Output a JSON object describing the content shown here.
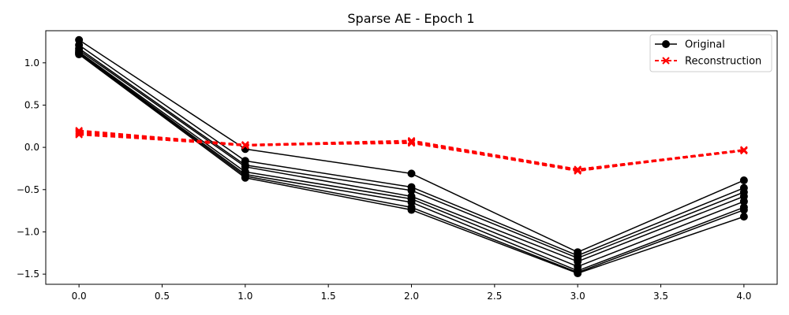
{
  "chart_data": {
    "type": "line",
    "title": "Sparse AE - Epoch 1",
    "xlabel": "",
    "ylabel": "",
    "xlim": [
      -0.2,
      4.2
    ],
    "ylim": [
      -1.62,
      1.38
    ],
    "x": [
      0,
      1,
      2,
      3,
      4
    ],
    "x_ticks": [
      0.0,
      0.5,
      1.0,
      1.5,
      2.0,
      2.5,
      3.0,
      3.5,
      4.0
    ],
    "x_tick_labels": [
      "0.0",
      "0.5",
      "1.0",
      "1.5",
      "2.0",
      "2.5",
      "3.0",
      "3.5",
      "4.0"
    ],
    "y_ticks": [
      1.0,
      0.5,
      0.0,
      -0.5,
      -1.0,
      -1.5
    ],
    "y_tick_labels": [
      "1.0",
      "0.5",
      "0.0",
      "−0.5",
      "−1.0",
      "−1.5"
    ],
    "grid": false,
    "legend": {
      "placement": "top-right",
      "entries": [
        {
          "label": "Original",
          "color": "#000000",
          "style": "solid",
          "marker": "circle"
        },
        {
          "label": "Reconstruction",
          "color": "#ff0000",
          "style": "dashed",
          "marker": "x"
        }
      ]
    },
    "series": [
      {
        "group": "original",
        "values": [
          1.27,
          -0.02,
          -0.31,
          -1.24,
          -0.39
        ]
      },
      {
        "group": "original",
        "values": [
          1.21,
          -0.16,
          -0.47,
          -1.28,
          -0.48
        ]
      },
      {
        "group": "original",
        "values": [
          1.17,
          -0.21,
          -0.51,
          -1.31,
          -0.53
        ]
      },
      {
        "group": "original",
        "values": [
          1.15,
          -0.23,
          -0.58,
          -1.35,
          -0.58
        ]
      },
      {
        "group": "original",
        "values": [
          1.13,
          -0.29,
          -0.61,
          -1.41,
          -0.64
        ]
      },
      {
        "group": "original",
        "values": [
          1.12,
          -0.32,
          -0.65,
          -1.46,
          -0.71
        ]
      },
      {
        "group": "original",
        "values": [
          1.11,
          -0.34,
          -0.71,
          -1.48,
          -0.74
        ]
      },
      {
        "group": "original",
        "values": [
          1.1,
          -0.36,
          -0.74,
          -1.49,
          -0.82
        ]
      },
      {
        "group": "reconstruction",
        "values": [
          0.2,
          0.03,
          0.08,
          -0.26,
          -0.03
        ]
      },
      {
        "group": "reconstruction",
        "values": [
          0.19,
          0.03,
          0.07,
          -0.26,
          -0.03
        ]
      },
      {
        "group": "reconstruction",
        "values": [
          0.18,
          0.02,
          0.07,
          -0.27,
          -0.03
        ]
      },
      {
        "group": "reconstruction",
        "values": [
          0.17,
          0.03,
          0.06,
          -0.27,
          -0.04
        ]
      },
      {
        "group": "reconstruction",
        "values": [
          0.16,
          0.02,
          0.06,
          -0.28,
          -0.03
        ]
      },
      {
        "group": "reconstruction",
        "values": [
          0.15,
          0.03,
          0.05,
          -0.27,
          -0.04
        ]
      }
    ]
  }
}
